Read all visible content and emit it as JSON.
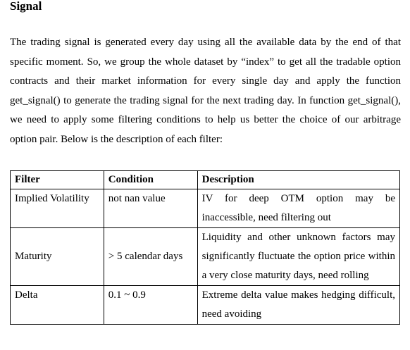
{
  "section": {
    "heading": "Signal",
    "paragraph": "The trading signal is generated every day using all the available data by the end of that specific moment. So, we group the whole dataset by “index” to get all the tradable option contracts and their market information for every single day and apply the function get_signal() to generate the trading signal for the next trading day. In function get_signal(), we need to apply some filtering conditions to help us better the choice of our arbitrage option pair. Below is the description of each filter:"
  },
  "table": {
    "headers": [
      "Filter",
      "Condition",
      "Description"
    ],
    "rows": [
      {
        "filter": "Implied Volatility",
        "condition": "not nan value",
        "description": "IV for deep OTM option may be inaccessible, need filtering out"
      },
      {
        "filter": "Maturity",
        "condition": "> 5 calendar days",
        "description": "Liquidity and other unknown factors may significantly fluctuate the option price within a very close maturity days, need rolling"
      },
      {
        "filter": "Delta",
        "condition": "0.1 ~ 0.9",
        "description": "Extreme delta value makes hedging difficult, need avoiding"
      }
    ]
  }
}
